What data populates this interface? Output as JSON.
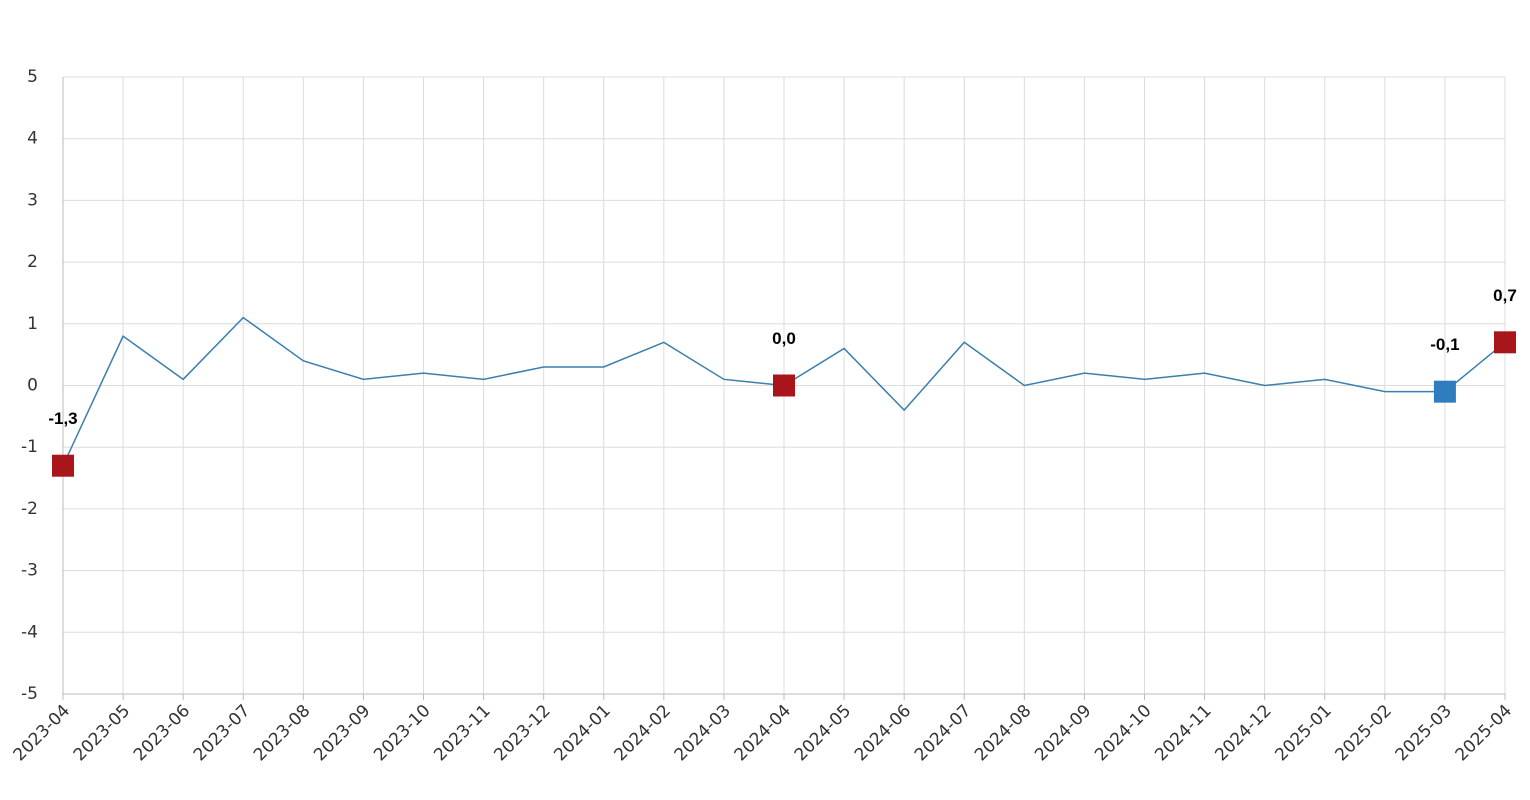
{
  "chart_data": {
    "type": "line",
    "categories": [
      "2023-04",
      "2023-05",
      "2023-06",
      "2023-07",
      "2023-08",
      "2023-09",
      "2023-10",
      "2023-11",
      "2023-12",
      "2024-01",
      "2024-02",
      "2024-03",
      "2024-04",
      "2024-05",
      "2024-06",
      "2024-07",
      "2024-08",
      "2024-09",
      "2024-10",
      "2024-11",
      "2024-12",
      "2025-01",
      "2025-02",
      "2025-03",
      "2025-04"
    ],
    "series": [
      {
        "color": "#3a7fae",
        "values": [
          -1.3,
          0.8,
          0.1,
          1.1,
          0.4,
          0.1,
          0.2,
          0.1,
          0.3,
          0.3,
          0.7,
          0.1,
          0.0,
          0.6,
          -0.4,
          0.7,
          0.0,
          0.2,
          0.1,
          0.2,
          0.0,
          0.1,
          -0.1,
          -0.1,
          0.7
        ],
        "value_labels": [
          "-1,3",
          null,
          null,
          null,
          null,
          null,
          null,
          null,
          null,
          null,
          null,
          null,
          "0,0",
          null,
          null,
          null,
          null,
          null,
          null,
          null,
          null,
          null,
          null,
          "-0,1",
          "0,7"
        ],
        "marker_colors": [
          "#a8161c",
          null,
          null,
          null,
          null,
          null,
          null,
          null,
          null,
          null,
          null,
          null,
          "#a8161c",
          null,
          null,
          null,
          null,
          null,
          null,
          null,
          null,
          null,
          null,
          "#2f7dbf",
          "#a8161c"
        ]
      }
    ],
    "ylim": [
      -5,
      5
    ],
    "yticks": [
      -5,
      -4,
      -3,
      -2,
      -1,
      0,
      1,
      2,
      3,
      4,
      5
    ],
    "grid": true
  }
}
